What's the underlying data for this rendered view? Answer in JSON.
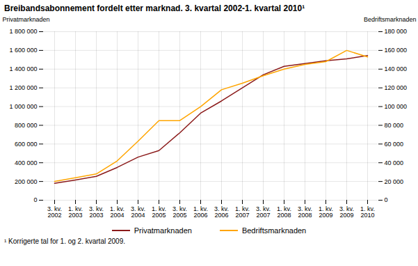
{
  "chart_data": {
    "type": "line",
    "title": "Breibandsabonnement fordelt etter marknad. 3. kvartal 2002-1. kvartal 2010¹",
    "ylabel": "Privatmarknaden",
    "y2label": "Bedriftsmarknaden",
    "footnote": "¹ Korrigerte tal for 1. og 2. kvartal 2009.",
    "categories": [
      "3. kv.\n2002",
      "1. kv.\n2003",
      "3. kv.\n2003",
      "1. kv.\n2004",
      "3. kv.\n2004",
      "1. kv.\n2005",
      "3. kv.\n2005",
      "1. kv.\n2006",
      "3. kv.\n2006",
      "1. kv.\n2007",
      "3. kv.\n2007",
      "1. kv.\n2008",
      "3. kv.\n2008",
      "1. kv.\n2009",
      "3. kv.\n2009",
      "1. kv.\n2010"
    ],
    "series": [
      {
        "name": "Privatmarknaden",
        "color": "#8B1A1A",
        "axis": "y",
        "values": [
          180000,
          215000,
          255000,
          350000,
          460000,
          530000,
          720000,
          930000,
          1060000,
          1200000,
          1340000,
          1430000,
          1460000,
          1490000,
          1510000,
          1545000
        ]
      },
      {
        "name": "Bedriftsmarknaden",
        "color": "#FFA500",
        "axis": "y2",
        "values": [
          20000,
          24000,
          28000,
          42000,
          63000,
          85000,
          85000,
          100000,
          118000,
          125000,
          133000,
          140000,
          145000,
          148000,
          160000,
          153000
        ]
      }
    ],
    "ylim": [
      0,
      1800000
    ],
    "yticks": [
      0,
      {
        "value": 200000,
        "label": "200 000"
      },
      {
        "value": 400000,
        "label": "400 000"
      },
      {
        "value": 600000,
        "label": "600 000"
      },
      {
        "value": 800000,
        "label": "800 000"
      },
      {
        "value": 1000000,
        "label": "1 000 000"
      },
      {
        "value": 1200000,
        "label": "1 200 000"
      },
      {
        "value": 1400000,
        "label": "1 400 000"
      },
      {
        "value": 1600000,
        "label": "1 600 000"
      },
      {
        "value": 1800000,
        "label": "1 800 000"
      }
    ],
    "y2lim": [
      0,
      180000
    ],
    "y2ticks": [
      0,
      {
        "value": 20000,
        "label": "20 000"
      },
      {
        "value": 40000,
        "label": "40 000"
      },
      {
        "value": 60000,
        "label": "60 000"
      },
      {
        "value": 80000,
        "label": "80 000"
      },
      {
        "value": 100000,
        "label": "100 000"
      },
      {
        "value": 120000,
        "label": "120 000"
      },
      {
        "value": 140000,
        "label": "140 000"
      },
      {
        "value": 160000,
        "label": "160 000"
      },
      {
        "value": 180000,
        "label": "180 000"
      }
    ],
    "grid": true,
    "legend": "bottom"
  }
}
